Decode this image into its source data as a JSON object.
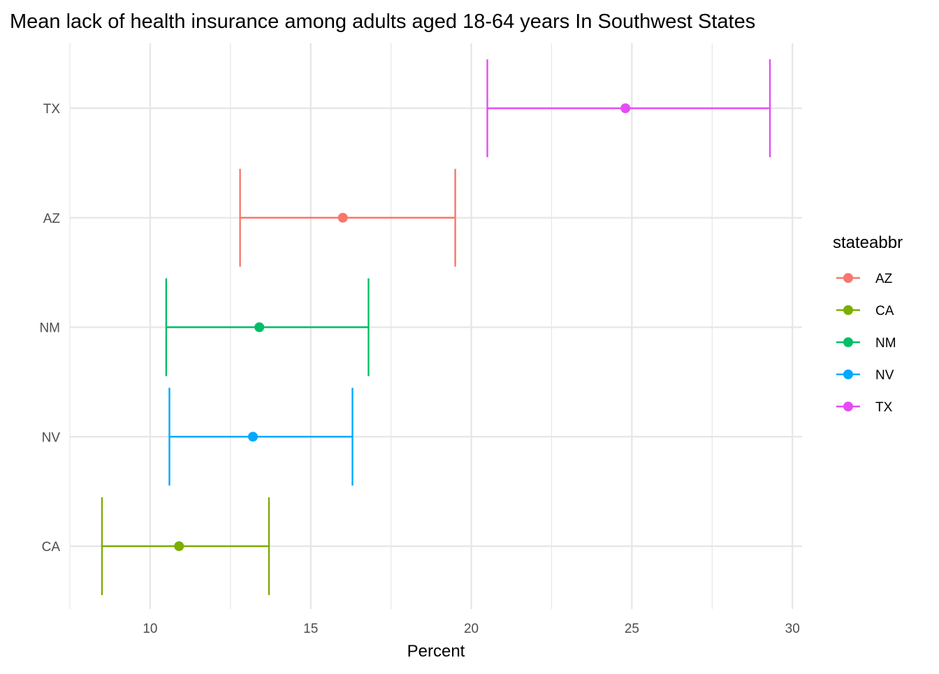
{
  "chart_data": {
    "type": "errorbar",
    "title": "Mean lack of health insurance among adults aged 18-64 years In Southwest States",
    "xlabel": "Percent",
    "ylabel": "",
    "xlim": [
      7.5,
      30.3
    ],
    "x_ticks": [
      10,
      15,
      20,
      25,
      30
    ],
    "x_tick_labels": [
      "10",
      "15",
      "20",
      "25",
      "30"
    ],
    "categories": [
      "CA",
      "NV",
      "NM",
      "AZ",
      "TX"
    ],
    "grid": true,
    "legend": {
      "title": "stateabbr",
      "position": "right",
      "entries": [
        "AZ",
        "CA",
        "NM",
        "NV",
        "TX"
      ]
    },
    "series": [
      {
        "name": "CA",
        "mean": 10.9,
        "lower": 8.5,
        "upper": 13.7,
        "color": "#7CAE00"
      },
      {
        "name": "NV",
        "mean": 13.2,
        "lower": 10.6,
        "upper": 16.3,
        "color": "#00A9FF"
      },
      {
        "name": "NM",
        "mean": 13.4,
        "lower": 10.5,
        "upper": 16.8,
        "color": "#00BE67"
      },
      {
        "name": "AZ",
        "mean": 16.0,
        "lower": 12.8,
        "upper": 19.5,
        "color": "#F8766D"
      },
      {
        "name": "TX",
        "mean": 24.8,
        "lower": 20.5,
        "upper": 29.3,
        "color": "#E64CF5"
      }
    ],
    "legend_colors": {
      "AZ": "#F8766D",
      "CA": "#7CAE00",
      "NM": "#00BE67",
      "NV": "#00A9FF",
      "TX": "#E64CF5"
    },
    "grid_color": "#e6e6e6"
  }
}
